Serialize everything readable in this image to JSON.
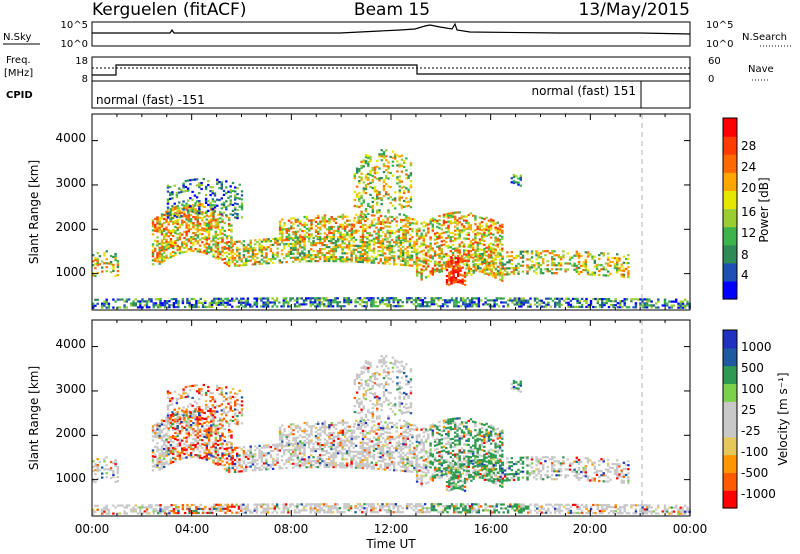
{
  "header": {
    "station": "Kerguelen (fitACF)",
    "beam": "Beam 15",
    "date": "13/May/2015"
  },
  "panels": {
    "nsky_label": "N.Sky",
    "nsky_ticks": [
      "10^5",
      "10^0"
    ],
    "nsearch_label": "N.Search",
    "nsearch_ticks": [
      "10^5",
      "10^0"
    ],
    "freq_label_1": "Freq.",
    "freq_label_2": "[MHz]",
    "freq_ticks": [
      "18",
      "8"
    ],
    "nave_label": "Nave",
    "nave_ticks": [
      "60",
      "0"
    ],
    "cpid_label": "CPID",
    "cpid_1": "normal (fast) -151",
    "cpid_2": "normal (fast) 151"
  },
  "colors": {
    "power_scale": [
      "#0000ff",
      "#1e50b4",
      "#2e8b57",
      "#3cb44b",
      "#9acd32",
      "#e6e600",
      "#ffa500",
      "#ff6a00",
      "#ff3c00",
      "#ff0000"
    ],
    "velocity_scale": [
      "#ff0000",
      "#ff5a00",
      "#ff9600",
      "#e6c85a",
      "#c8c8c8",
      "#c8c8c8",
      "#7cd04a",
      "#2e9a50",
      "#1e5aa0",
      "#2030c0"
    ]
  },
  "chart_data": [
    {
      "type": "heatmap",
      "title": "",
      "xlabel": "Time UT",
      "ylabel": "Slant Range [km]",
      "x_ticks": [
        "00:00",
        "04:00",
        "08:00",
        "12:00",
        "16:00",
        "20:00",
        "00:00"
      ],
      "y_ticks": [
        "1000",
        "2000",
        "3000",
        "4000"
      ],
      "xlim_hours": [
        0,
        24
      ],
      "ylim_km": [
        180,
        4600
      ],
      "colorbar_label": "Power [dB]",
      "colorbar_ticks": [
        "4",
        "8",
        "12",
        "16",
        "20",
        "24",
        "28"
      ],
      "colorbar_range": [
        0,
        30
      ]
    },
    {
      "type": "heatmap",
      "title": "",
      "xlabel": "Time UT",
      "ylabel": "Slant Range [km]",
      "x_ticks": [
        "00:00",
        "04:00",
        "08:00",
        "12:00",
        "16:00",
        "20:00",
        "00:00"
      ],
      "y_ticks": [
        "1000",
        "2000",
        "3000",
        "4000"
      ],
      "xlim_hours": [
        0,
        24
      ],
      "ylim_km": [
        180,
        4600
      ],
      "colorbar_label": "Velocity [m s⁻¹]",
      "colorbar_ticks": [
        "1000",
        "500",
        "100",
        "25",
        "-25",
        "-100",
        "-500",
        "-1000"
      ],
      "colorbar_range": [
        -1000,
        1000
      ]
    }
  ]
}
